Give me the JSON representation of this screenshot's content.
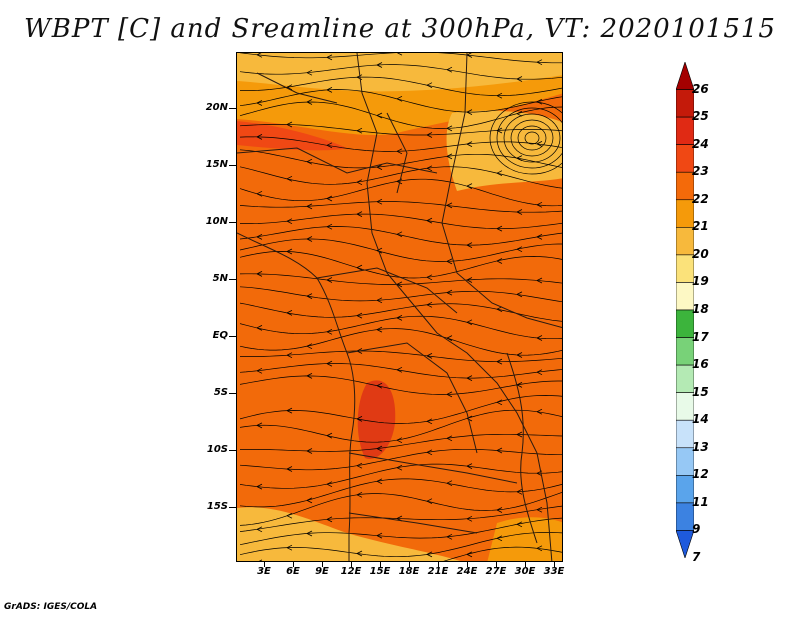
{
  "title": "WBPT [C] and Sreamline at 300hPa, VT: 2020101515",
  "credit": "GrADS: IGES/COLA",
  "map": {
    "lat_labels": [
      "20N",
      "15N",
      "10N",
      "5N",
      "EQ",
      "5S",
      "10S",
      "15S"
    ],
    "lon_labels": [
      "3E",
      "6E",
      "9E",
      "12E",
      "15E",
      "18E",
      "21E",
      "24E",
      "27E",
      "30E",
      "33E"
    ],
    "background_color": "#f26a0a",
    "streamline_color": "#000000",
    "boundary_color": "#2a1a10"
  },
  "legend": {
    "labels": [
      "26",
      "25",
      "24",
      "23",
      "22",
      "21",
      "20",
      "19",
      "18",
      "17",
      "16",
      "15",
      "14",
      "13",
      "12",
      "11",
      "9",
      "7"
    ],
    "colors": [
      "#a40000",
      "#c41a0a",
      "#e02a14",
      "#f04814",
      "#f46a0a",
      "#f59a0a",
      "#f7b93c",
      "#fbe27a",
      "#fdf8c4",
      "#3cb43c",
      "#78d278",
      "#b4eab4",
      "#e8fae8",
      "#c8e2fa",
      "#96c8f5",
      "#5aa4eb",
      "#3c82e1",
      "#1e5adc"
    ]
  }
}
